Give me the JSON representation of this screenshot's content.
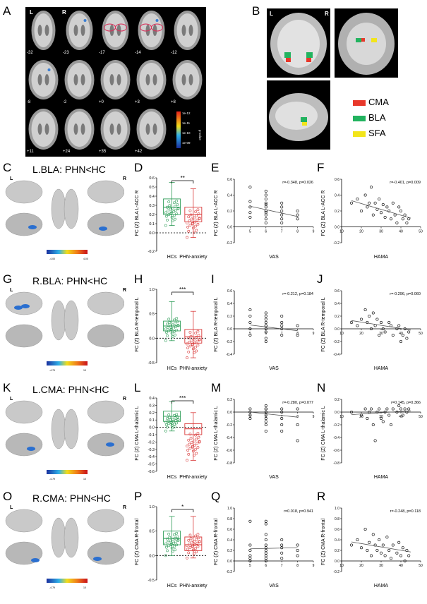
{
  "panel_letters": {
    "A": "A",
    "B": "B",
    "C": "C",
    "D": "D",
    "E": "E",
    "F": "F",
    "G": "G",
    "H": "H",
    "I": "I",
    "J": "J",
    "K": "K",
    "L": "L",
    "M": "M",
    "N": "N",
    "O": "O",
    "P": "P",
    "Q": "Q",
    "R": "R"
  },
  "panel_a": {
    "side_left": "L",
    "side_right": "R",
    "slice_labels": [
      "-32",
      "-23",
      "-17",
      "-14",
      "-12",
      "-8",
      "-2",
      "+0",
      "+3",
      "+8",
      "+11",
      "+24",
      "+35",
      "+42"
    ],
    "colorbar_ticks": [
      "1e-12",
      "1e-11",
      "1e-10",
      "1e-09"
    ],
    "colorbar_title": "p-value"
  },
  "panel_b": {
    "side_left": "L",
    "side_right": "R",
    "legend": [
      {
        "label": "CMA",
        "color": "#e8382b"
      },
      {
        "label": "BLA",
        "color": "#22b35f"
      },
      {
        "label": "SFA",
        "color": "#f2e51a"
      }
    ]
  },
  "rows": [
    {
      "title": "L.BLA: PHN<HC",
      "side_left": "L",
      "side_right": "R",
      "colorbar_ticks": [
        "-4.00",
        "4.00"
      ],
      "box_ylabel": "FC (Z) BLA L-ACC R",
      "sig": "**",
      "groups": [
        "HCs",
        "PHN-anxiety"
      ],
      "vas_ylabel": "FC (Z) BLA L-ACC R",
      "vas_xlabel": "VAS",
      "vas_stats": "r=-0.348, p=0.026",
      "hama_ylabel": "FC (Z) BLA L-ACC R",
      "hama_xlabel": "HAMA",
      "hama_stats": "r=-0.401, p=0.009"
    },
    {
      "title": "R.BLA: PHN<HC",
      "side_left": "L",
      "side_right": "R",
      "colorbar_ticks": [
        "-4.79",
        "10"
      ],
      "box_ylabel": "FC (Z) BLA R-temporal L",
      "sig": "***",
      "groups": [
        "HCs",
        "PHN-anxiety"
      ],
      "vas_ylabel": "FC (Z) BLA R-temporal L",
      "vas_xlabel": "VAS",
      "vas_stats": "r=-0.212, p=0.184",
      "hama_ylabel": "FC (Z) BLA R-temporal L",
      "hama_xlabel": "HAMA",
      "hama_stats": "r=-0.296, p=0.060"
    },
    {
      "title": "L.CMA: PHN<HC",
      "side_left": "L",
      "side_right": "R",
      "colorbar_ticks": [
        "-4.79",
        "10"
      ],
      "box_ylabel": "FC (Z) CMA L-thalamic L",
      "sig": "***",
      "groups": [
        "HCs",
        "PHN-anxiety"
      ],
      "vas_ylabel": "FC (Z) CMA L-thalamic L",
      "vas_xlabel": "VAS",
      "vas_stats": "r=-0.280, p=0.077",
      "hama_ylabel": "FC (Z) CMA L-thalamic L",
      "hama_xlabel": "HAMA",
      "hama_stats": "r=0.145, p=0.366"
    },
    {
      "title": "R.CMA: PHN<HC",
      "side_left": "L",
      "side_right": "R",
      "colorbar_ticks": [
        "-4.79",
        "10"
      ],
      "box_ylabel": "FC (Z) CMA R-frontal",
      "sig": "*",
      "groups": [
        "HCs",
        "PHN-anxiety"
      ],
      "vas_ylabel": "FC (Z) CMA R-frontal",
      "vas_xlabel": "VAS",
      "vas_stats": "r=0.018, p=0.941",
      "hama_ylabel": "FC (Z) CMA R-frontal",
      "hama_xlabel": "HAMA",
      "hama_stats": "r=-0.248, p=0.118"
    }
  ],
  "chart_data": [
    {
      "panel": "D",
      "type": "box",
      "categories": [
        "HCs",
        "PHN-anxiety"
      ],
      "ylabel": "FC (Z) BLA L-ACC R",
      "ylim": [
        -0.2,
        0.6
      ],
      "yticks": [
        "-0.2",
        "0.0",
        "0.1",
        "0.2",
        "0.3",
        "0.4",
        "0.5",
        "0.6"
      ],
      "groups": [
        {
          "name": "HCs",
          "color": "#2e9d58",
          "q1": 0.2,
          "median": 0.28,
          "q3": 0.37,
          "min": 0.08,
          "max": 0.55
        },
        {
          "name": "PHN-anxiety",
          "color": "#d93a3a",
          "q1": 0.12,
          "median": 0.2,
          "q3": 0.28,
          "min": -0.05,
          "max": 0.48
        }
      ],
      "significance": "**"
    },
    {
      "panel": "E",
      "type": "scatter",
      "xlabel": "VAS",
      "ylabel": "FC (Z) BLA L-ACC R",
      "xlim": [
        4,
        9
      ],
      "ylim": [
        -0.2,
        0.6
      ],
      "xticks": [
        "5",
        "6",
        "7",
        "8",
        "9"
      ],
      "yticks": [
        "-0.2",
        "0.0",
        "0.2",
        "0.4",
        "0.6"
      ],
      "x": [
        5,
        5,
        5,
        5,
        5,
        6,
        6,
        6,
        6,
        6,
        6,
        6,
        6,
        6,
        6,
        6,
        6,
        7,
        7,
        7,
        7,
        7,
        7,
        8,
        8,
        8
      ],
      "y": [
        0.12,
        0.18,
        0.25,
        0.32,
        0.5,
        0.05,
        0.1,
        0.15,
        0.2,
        0.25,
        0.28,
        0.3,
        0.35,
        0.4,
        0.45,
        0.2,
        0.18,
        0.05,
        0.1,
        0.15,
        0.2,
        0.3,
        0.25,
        0.1,
        0.15,
        0.2
      ],
      "fit": [
        [
          5,
          0.26
        ],
        [
          8,
          0.13
        ]
      ],
      "annotation": "r=-0.348, p=0.026"
    },
    {
      "panel": "F",
      "type": "scatter",
      "xlabel": "HAMA",
      "ylabel": "FC (Z) BLA L-ACC R",
      "xlim": [
        10,
        50
      ],
      "ylim": [
        -0.2,
        0.6
      ],
      "xticks": [
        "10",
        "20",
        "30",
        "40",
        "50"
      ],
      "yticks": [
        "-0.2",
        "0.0",
        "0.2",
        "0.4",
        "0.6"
      ],
      "x": [
        15,
        18,
        20,
        22,
        23,
        24,
        25,
        26,
        27,
        28,
        29,
        30,
        31,
        32,
        33,
        34,
        35,
        36,
        37,
        38,
        39,
        40,
        41,
        42,
        43,
        44
      ],
      "y": [
        0.3,
        0.35,
        0.2,
        0.4,
        0.25,
        0.3,
        0.5,
        0.15,
        0.3,
        0.22,
        0.35,
        0.18,
        0.28,
        0.12,
        0.25,
        0.2,
        0.1,
        0.3,
        0.15,
        0.05,
        0.25,
        0.2,
        0.1,
        0.15,
        0.05,
        0.1
      ],
      "fit": [
        [
          15,
          0.33
        ],
        [
          45,
          0.11
        ]
      ],
      "annotation": "r=-0.401, p=0.009"
    },
    {
      "panel": "H",
      "type": "box",
      "categories": [
        "HCs",
        "PHN-anxiety"
      ],
      "ylabel": "FC (Z) BLA R-temporal L",
      "ylim": [
        -0.5,
        1.0
      ],
      "yticks": [
        "-0.5",
        "0.0",
        "0.5",
        "1.0"
      ],
      "groups": [
        {
          "name": "HCs",
          "color": "#2e9d58",
          "q1": 0.15,
          "median": 0.25,
          "q3": 0.35,
          "min": -0.05,
          "max": 0.75
        },
        {
          "name": "PHN-anxiety",
          "color": "#d93a3a",
          "q1": -0.1,
          "median": 0.03,
          "q3": 0.18,
          "min": -0.4,
          "max": 0.55
        }
      ],
      "significance": "***"
    },
    {
      "panel": "I",
      "type": "scatter",
      "xlabel": "VAS",
      "ylabel": "FC (Z) BLA R-temporal L",
      "xlim": [
        4,
        9
      ],
      "ylim": [
        -0.4,
        0.6
      ],
      "xticks": [
        "5",
        "6",
        "7",
        "8",
        "9"
      ],
      "yticks": [
        "-0.4",
        "-0.2",
        "0.0",
        "0.2",
        "0.4",
        "0.6"
      ],
      "x": [
        5,
        5,
        5,
        5,
        5,
        6,
        6,
        6,
        6,
        6,
        6,
        6,
        6,
        6,
        6,
        7,
        7,
        7,
        7,
        7,
        8,
        8
      ],
      "y": [
        -0.1,
        0.0,
        0.1,
        0.2,
        0.3,
        -0.15,
        -0.05,
        0.0,
        0.05,
        0.1,
        0.15,
        0.2,
        0.25,
        -0.2,
        0.05,
        -0.1,
        0.0,
        0.05,
        0.1,
        0.2,
        -0.1,
        0.05
      ],
      "fit": [
        [
          5,
          0.06
        ],
        [
          8,
          -0.03
        ]
      ],
      "annotation": "r=-0.212, p=0.184"
    },
    {
      "panel": "J",
      "type": "scatter",
      "xlabel": "HAMA",
      "ylabel": "FC (Z) BLA R-temporal L",
      "xlim": [
        10,
        50
      ],
      "ylim": [
        -0.4,
        0.6
      ],
      "xticks": [
        "10",
        "20",
        "30",
        "40",
        "50"
      ],
      "yticks": [
        "-0.4",
        "-0.2",
        "0.0",
        "0.2",
        "0.4",
        "0.6"
      ],
      "x": [
        15,
        18,
        20,
        22,
        23,
        24,
        25,
        26,
        27,
        28,
        29,
        30,
        31,
        32,
        34,
        35,
        36,
        38,
        39,
        40,
        41,
        42,
        43,
        44
      ],
      "y": [
        0.1,
        0.05,
        0.15,
        0.3,
        0.1,
        0.2,
        0.0,
        0.25,
        0.05,
        0.15,
        -0.1,
        0.1,
        0.0,
        -0.05,
        0.1,
        0.05,
        -0.1,
        0.0,
        0.05,
        -0.2,
        -0.1,
        0.0,
        -0.15,
        -0.05
      ],
      "fit": [
        [
          15,
          0.13
        ],
        [
          45,
          -0.02
        ]
      ],
      "annotation": "r=-0.296, p=0.060"
    },
    {
      "panel": "L",
      "type": "box",
      "categories": [
        "HCs",
        "PHN-anxiety"
      ],
      "ylabel": "FC (Z) CMA L-thalamic L",
      "ylim": [
        -0.6,
        0.4
      ],
      "yticks": [
        "-0.6",
        "-0.5",
        "-0.4",
        "-0.3",
        "-0.2",
        "-0.1",
        "0.0",
        "0.1",
        "0.2",
        "0.3",
        "0.4"
      ],
      "groups": [
        {
          "name": "HCs",
          "color": "#2e9d58",
          "q1": 0.08,
          "median": 0.15,
          "q3": 0.22,
          "min": -0.05,
          "max": 0.35
        },
        {
          "name": "PHN-anxiety",
          "color": "#d93a3a",
          "q1": -0.1,
          "median": -0.02,
          "q3": 0.05,
          "min": -0.45,
          "max": 0.2
        }
      ],
      "significance": "***"
    },
    {
      "panel": "M",
      "type": "scatter",
      "xlabel": "VAS",
      "ylabel": "FC (Z) CMA L-thalamic L",
      "xlim": [
        4,
        9
      ],
      "ylim": [
        -0.8,
        0.2
      ],
      "xticks": [
        "5",
        "6",
        "7",
        "8",
        "9"
      ],
      "yticks": [
        "-0.8",
        "-0.6",
        "-0.4",
        "-0.2",
        "0.0",
        "0.2"
      ],
      "x": [
        5,
        5,
        5,
        5,
        6,
        6,
        6,
        6,
        6,
        6,
        6,
        6,
        6,
        7,
        7,
        7,
        7,
        7,
        8,
        8,
        8
      ],
      "y": [
        0.05,
        0.0,
        -0.05,
        -0.1,
        0.1,
        0.05,
        0.0,
        -0.05,
        -0.1,
        -0.15,
        -0.2,
        -0.3,
        0.05,
        0.05,
        0.0,
        -0.1,
        -0.2,
        -0.3,
        0.05,
        -0.2,
        -0.45
      ],
      "fit": [
        [
          5,
          0.0
        ],
        [
          8,
          -0.08
        ]
      ],
      "annotation": "r=-0.280, p=0.077"
    },
    {
      "panel": "N",
      "type": "scatter",
      "xlabel": "HAMA",
      "ylabel": "FC (Z) CMA L-thalamic L",
      "xlim": [
        10,
        50
      ],
      "ylim": [
        -0.8,
        0.2
      ],
      "xticks": [
        "10",
        "20",
        "30",
        "40",
        "50"
      ],
      "yticks": [
        "-0.8",
        "-0.6",
        "-0.4",
        "-0.2",
        "0.0",
        "0.2"
      ],
      "x": [
        15,
        20,
        22,
        23,
        24,
        25,
        26,
        27,
        28,
        29,
        30,
        31,
        32,
        33,
        34,
        35,
        36,
        38,
        39,
        40,
        41,
        42,
        43,
        44
      ],
      "y": [
        0.0,
        -0.05,
        0.05,
        -0.1,
        0.0,
        0.05,
        -0.2,
        -0.45,
        0.0,
        0.05,
        -0.1,
        -0.15,
        0.0,
        0.05,
        -0.05,
        -0.2,
        0.05,
        0.0,
        0.1,
        0.05,
        -0.05,
        0.05,
        0.0,
        0.05
      ],
      "fit": [
        [
          15,
          -0.04
        ],
        [
          45,
          0.02
        ]
      ],
      "annotation": "r=0.145, p=0.366"
    },
    {
      "panel": "P",
      "type": "box",
      "categories": [
        "HCs",
        "PHN-anxiety"
      ],
      "ylabel": "FC (Z) CMA R-frontal",
      "ylim": [
        -0.5,
        1.0
      ],
      "yticks": [
        "-0.5",
        "0.0",
        "0.5",
        "1.0"
      ],
      "groups": [
        {
          "name": "HCs",
          "color": "#2e9d58",
          "q1": 0.22,
          "median": 0.35,
          "q3": 0.5,
          "min": 0.0,
          "max": 0.8
        },
        {
          "name": "PHN-anxiety",
          "color": "#d93a3a",
          "q1": 0.1,
          "median": 0.22,
          "q3": 0.38,
          "min": -0.05,
          "max": 0.8
        }
      ],
      "significance": "*"
    },
    {
      "panel": "Q",
      "type": "scatter",
      "xlabel": "VAS",
      "ylabel": "FC (Z) CMA R-frontal",
      "xlim": [
        4,
        9
      ],
      "ylim": [
        -0.2,
        1.0
      ],
      "xticks": [
        "5",
        "6",
        "7",
        "8",
        "9"
      ],
      "yticks": [
        "-0.2",
        "0.0",
        "0.2",
        "0.4",
        "0.6",
        "0.8",
        "1.0"
      ],
      "x": [
        5,
        5,
        5,
        5,
        5,
        5,
        6,
        6,
        6,
        6,
        6,
        6,
        6,
        6,
        6,
        6,
        6,
        7,
        7,
        7,
        7,
        7,
        8,
        8,
        8
      ],
      "y": [
        0.0,
        0.05,
        0.1,
        0.2,
        0.3,
        0.75,
        0.0,
        0.05,
        0.1,
        0.15,
        0.2,
        0.25,
        0.3,
        0.4,
        0.5,
        0.7,
        0.75,
        0.05,
        0.15,
        0.25,
        0.3,
        0.4,
        0.1,
        0.2,
        0.3
      ],
      "fit": [
        [
          5,
          0.23
        ],
        [
          8,
          0.25
        ]
      ],
      "annotation": "r=0.018, p=0.941"
    },
    {
      "panel": "R",
      "type": "scatter",
      "xlabel": "HAMA",
      "ylabel": "FC (Z) CMA R-frontal",
      "xlim": [
        10,
        50
      ],
      "ylim": [
        -0.2,
        1.0
      ],
      "xticks": [
        "10",
        "20",
        "30",
        "40",
        "50"
      ],
      "yticks": [
        "-0.2",
        "0.0",
        "0.2",
        "0.4",
        "0.6",
        "0.8",
        "1.0"
      ],
      "x": [
        15,
        18,
        20,
        22,
        23,
        24,
        25,
        26,
        27,
        28,
        29,
        30,
        31,
        32,
        33,
        34,
        35,
        36,
        38,
        39,
        40,
        41,
        42,
        43,
        44
      ],
      "y": [
        0.3,
        0.4,
        0.25,
        0.6,
        0.2,
        0.35,
        0.1,
        0.5,
        0.3,
        0.2,
        0.4,
        0.15,
        0.3,
        0.1,
        0.45,
        0.2,
        0.05,
        0.3,
        0.15,
        0.35,
        0.1,
        0.25,
        0.0,
        0.2,
        0.1
      ],
      "fit": [
        [
          15,
          0.36
        ],
        [
          45,
          0.17
        ]
      ],
      "annotation": "r=-0.248, p=0.118"
    }
  ]
}
